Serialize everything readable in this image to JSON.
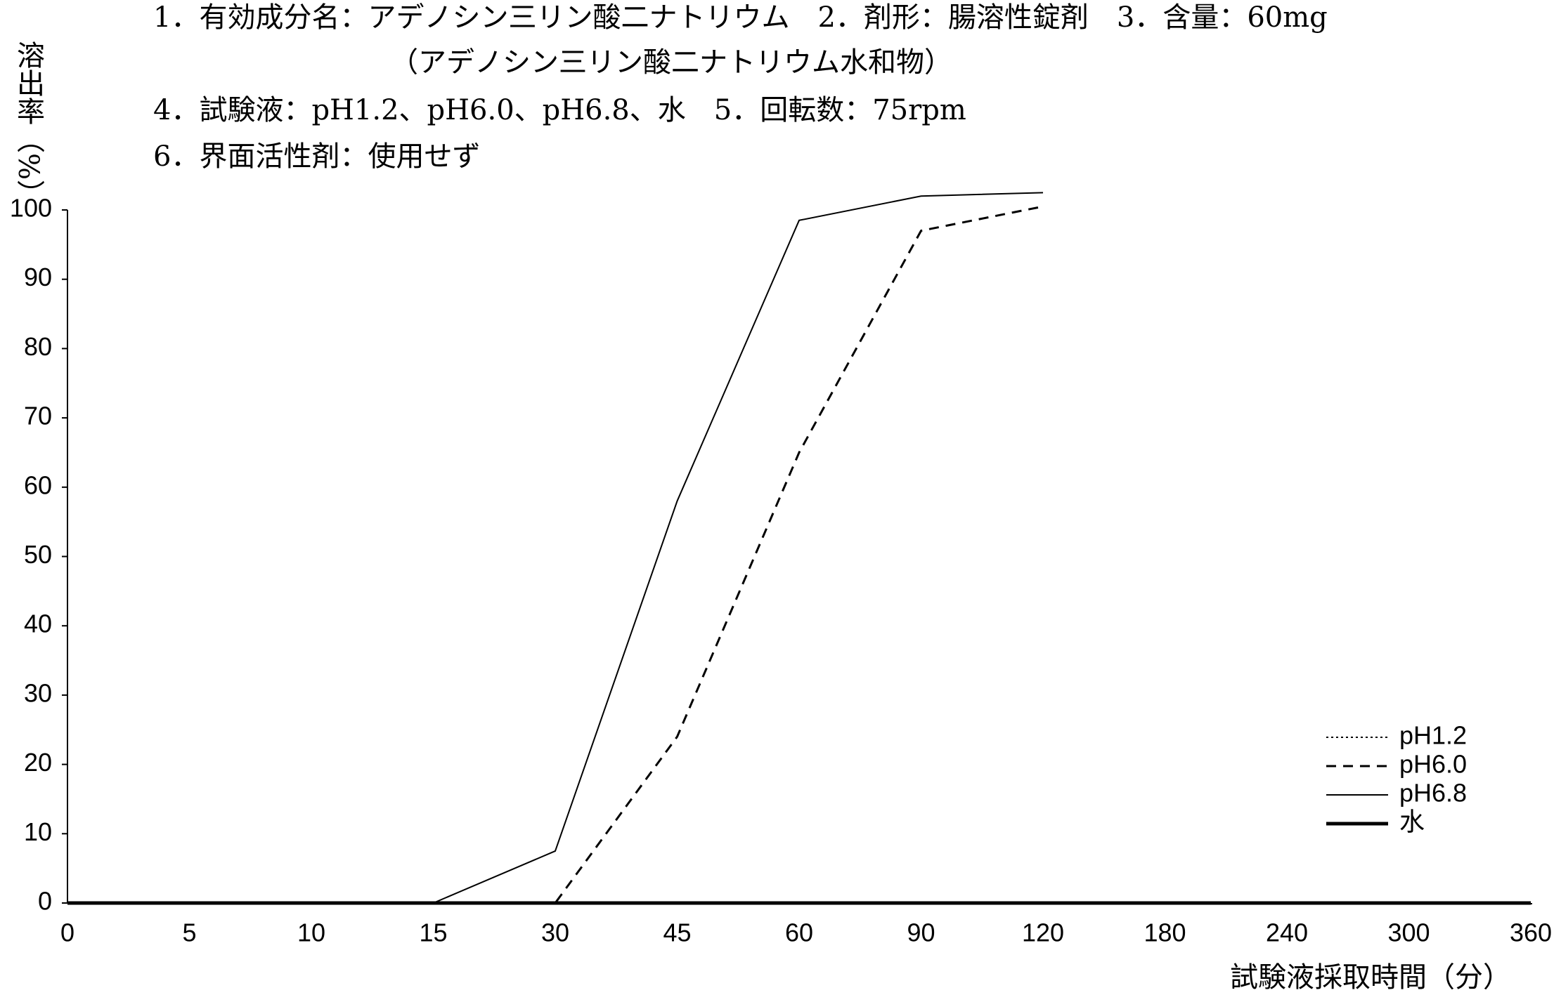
{
  "chart_data": {
    "type": "line",
    "header_lines": [
      "1．有効成分名：アデノシン三リン酸二ナトリウム　2．剤形：腸溶性錠剤　3．含量：60mg",
      "（アデノシン三リン酸二ナトリウム水和物）",
      "4．試験液：pH1.2、pH6.0、pH6.8、水　5．回転数：75rpm",
      "6．界面活性剤：使用せず"
    ],
    "y_label": "溶出率（%）",
    "x_label": "試験液採取時間（分）",
    "categories": [
      "0",
      "5",
      "10",
      "15",
      "30",
      "45",
      "60",
      "90",
      "120",
      "180",
      "240",
      "300",
      "360"
    ],
    "series": [
      {
        "name": "pH1.2",
        "color": "#000000",
        "line_style": "dotted",
        "line_width": 2,
        "values": [
          0,
          0,
          0,
          0,
          0,
          0,
          0,
          0,
          0,
          0,
          0,
          0,
          0
        ]
      },
      {
        "name": "pH6.0",
        "color": "#000000",
        "line_style": "dashed",
        "line_width": 3,
        "values": [
          0,
          0,
          0,
          0,
          0,
          24,
          65,
          97,
          100.5,
          null,
          null,
          null,
          null
        ]
      },
      {
        "name": "pH6.8",
        "color": "#000000",
        "line_style": "solid",
        "line_width": 2,
        "values": [
          0,
          0,
          0,
          0,
          7.5,
          58,
          98.5,
          102,
          102.5,
          null,
          null,
          null,
          null
        ]
      },
      {
        "name": "水",
        "color": "#000000",
        "line_style": "solid",
        "line_width": 5,
        "values": [
          0,
          0,
          0,
          0,
          0,
          0,
          0,
          0,
          0,
          0,
          0,
          0,
          0
        ]
      }
    ],
    "ylim": [
      0,
      100
    ],
    "yticks": [
      0,
      10,
      20,
      30,
      40,
      50,
      60,
      70,
      80,
      90,
      100
    ],
    "grid": false,
    "legend": "lower right"
  }
}
